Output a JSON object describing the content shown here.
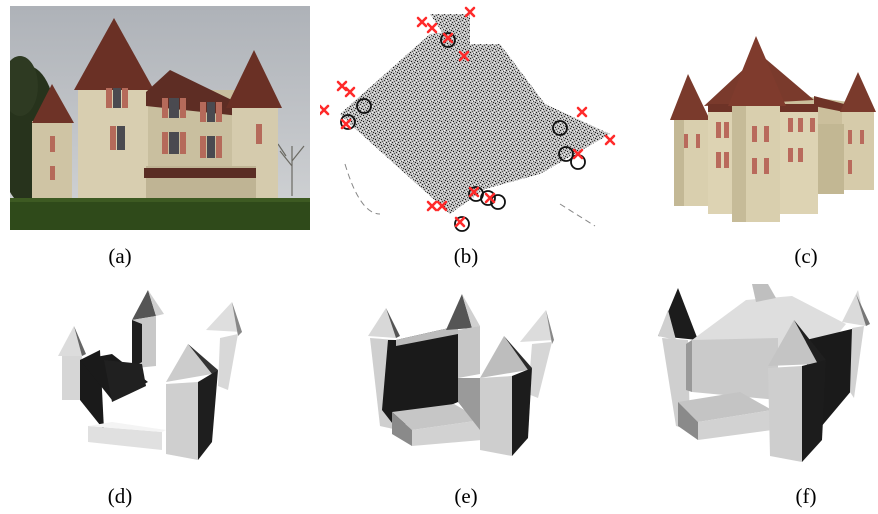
{
  "figure": {
    "panels": [
      {
        "id": "a",
        "caption": "(a)",
        "content": "photo-chateau"
      },
      {
        "id": "b",
        "caption": "(b)",
        "content": "point-cloud-with-markers"
      },
      {
        "id": "c",
        "caption": "(c)",
        "content": "textured-model"
      },
      {
        "id": "d",
        "caption": "(d)",
        "content": "partial-model"
      },
      {
        "id": "e",
        "caption": "(e)",
        "content": "partial-model"
      },
      {
        "id": "f",
        "caption": "(f)",
        "content": "complete-model"
      }
    ]
  },
  "colors": {
    "roof": "#7a3a2c",
    "wall": "#d9cfae",
    "shutter": "#b96a5c",
    "marker": "#ff2a2a",
    "grass": "#2f4a1a",
    "sky": "#b9bcc0"
  }
}
